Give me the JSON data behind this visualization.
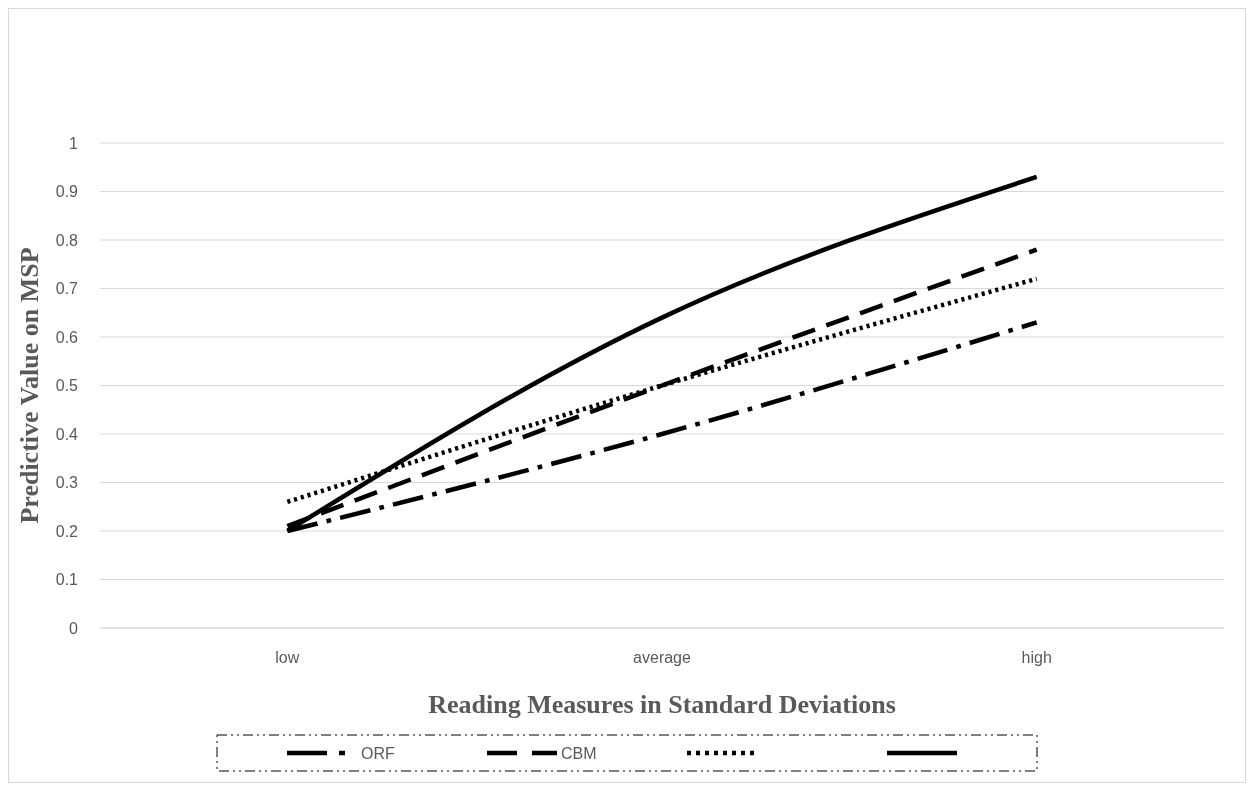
{
  "chart_data": {
    "type": "line",
    "xlabel": "Reading Measures in Standard Deviations",
    "ylabel": "Predictive Value on MSP",
    "categories": [
      "low",
      "average",
      "high"
    ],
    "series": [
      {
        "name": "ORF",
        "color": "#000000",
        "line_style": "dashdot",
        "values": [
          0.2,
          0.4,
          0.63
        ]
      },
      {
        "name": "CBM",
        "color": "#000000",
        "line_style": "dashed",
        "values": [
          0.21,
          0.5,
          0.78
        ]
      },
      {
        "color": "#000000",
        "line_style": "dotted",
        "values": [
          0.26,
          0.5,
          0.72
        ]
      },
      {
        "color": "#000000",
        "line_style": "solid",
        "values": [
          0.2,
          0.64,
          0.93
        ]
      }
    ],
    "ylim": [
      0,
      1
    ],
    "yticks": [
      0,
      0.1,
      0.2,
      0.3,
      0.4,
      0.5,
      0.6,
      0.7,
      0.8,
      0.9,
      1
    ],
    "grid": "y",
    "legend": "bottom",
    "marker": "none"
  }
}
